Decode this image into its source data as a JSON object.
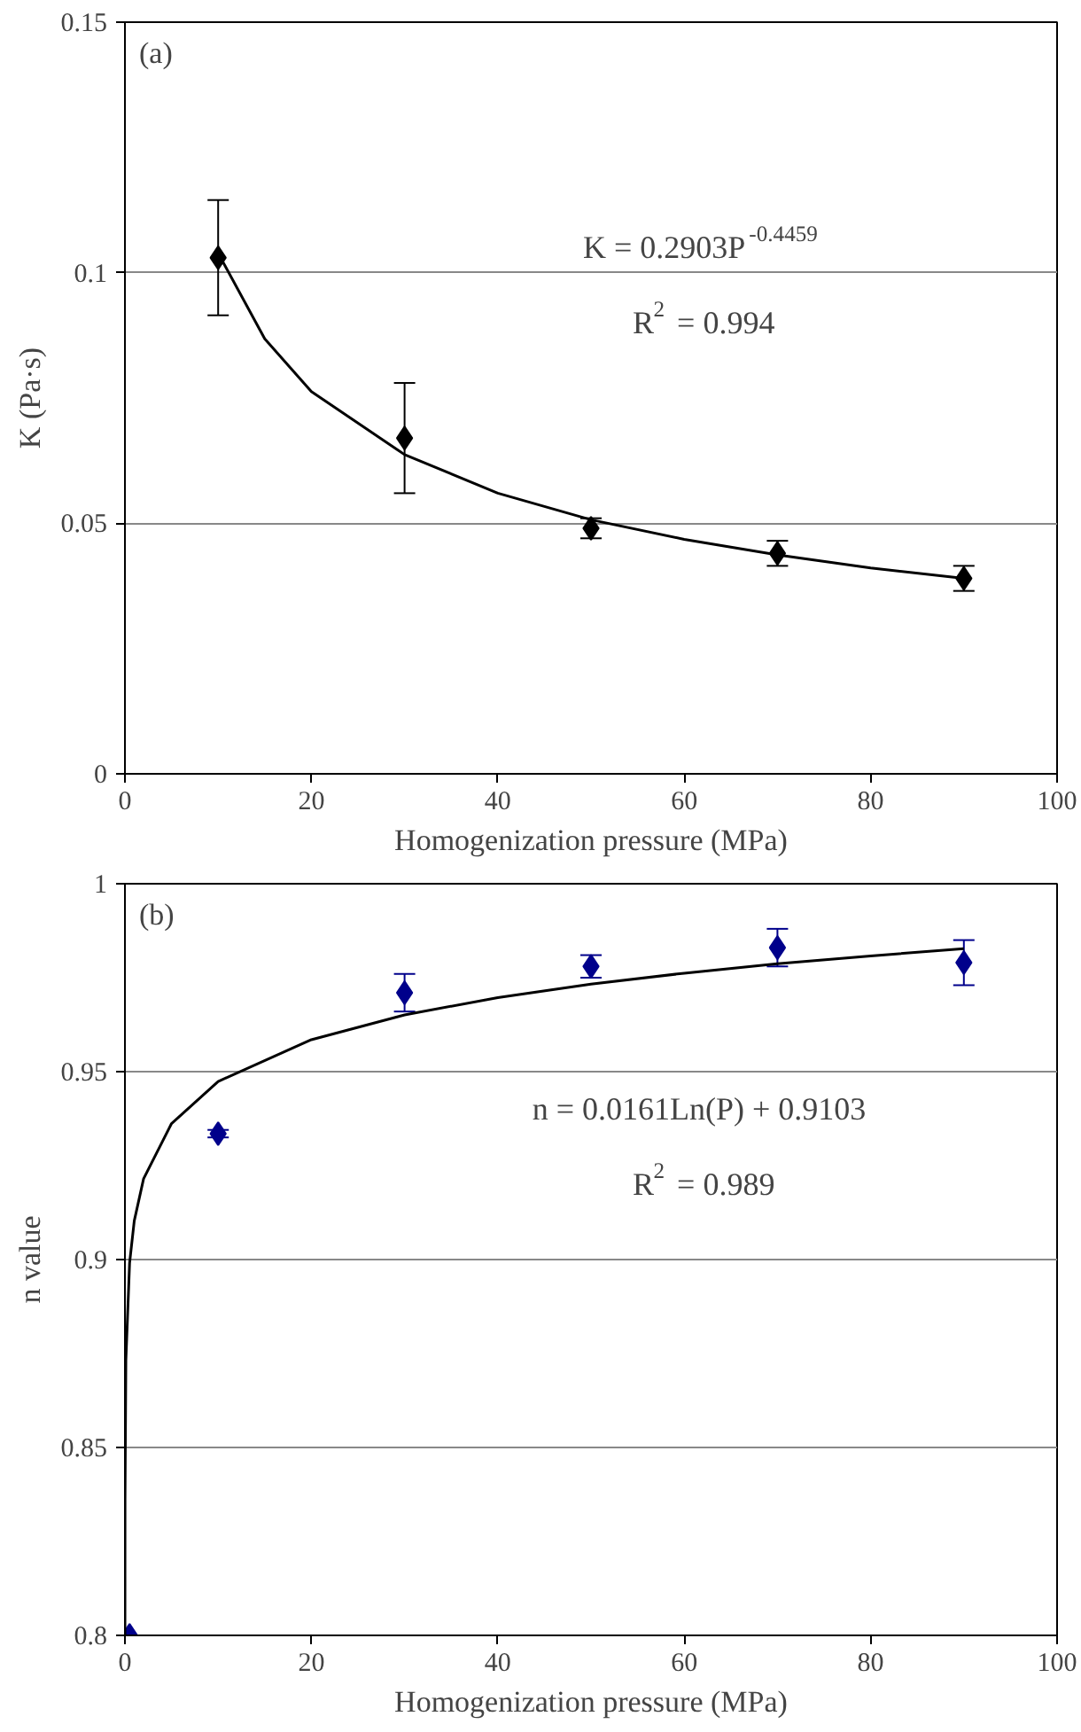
{
  "chart_data": [
    {
      "type": "scatter",
      "xlabel": "Homogenization pressure (MPa)",
      "ylabel": "K (Pa·s)",
      "xlim": [
        0,
        100
      ],
      "ylim": [
        0,
        0.15
      ],
      "xticks": [
        0,
        20,
        40,
        60,
        80,
        100
      ],
      "yticks": [
        0,
        0.05,
        0.1,
        0.15
      ],
      "grid": "y",
      "annotations": [
        "(a)",
        "K = 0.2903P$^{-0.4459}$",
        "R$^{2}$ = 0.994"
      ],
      "series": [
        {
          "color": "#000000",
          "marker": "diamond",
          "x": [
            10,
            30,
            50,
            70,
            90
          ],
          "values": [
            0.103,
            0.067,
            0.049,
            0.044,
            0.039
          ],
          "errors": [
            0.0115,
            0.011,
            0.002,
            0.0025,
            0.0025
          ]
        },
        {
          "type": "line",
          "color": "#000000",
          "line_style": "solid",
          "x": [
            10,
            15,
            20,
            30,
            40,
            50,
            60,
            70,
            80,
            90
          ],
          "values": [
            0.1039,
            0.0868,
            0.0763,
            0.0637,
            0.056,
            0.0507,
            0.0468,
            0.0437,
            0.0411,
            0.039
          ]
        }
      ]
    },
    {
      "type": "scatter",
      "xlabel": "Homogenization pressure (MPa)",
      "ylabel": "n value",
      "xlim": [
        0,
        100
      ],
      "ylim": [
        0.8,
        1
      ],
      "xticks": [
        0,
        20,
        40,
        60,
        80,
        100
      ],
      "yticks": [
        0.8,
        0.85,
        0.9,
        0.95,
        1
      ],
      "grid": "y",
      "annotations": [
        "(b)",
        "n = 0.0161Ln(P) + 0.9103",
        "R$^{2}$ = 0.989"
      ],
      "series": [
        {
          "color": "#00008b",
          "marker": "diamond",
          "x": [
            0.5,
            10,
            30,
            50,
            70,
            90
          ],
          "values": [
            0.8,
            0.9335,
            0.971,
            0.978,
            0.983,
            0.979
          ],
          "errors": [
            null,
            0.001,
            0.005,
            0.003,
            0.005,
            0.006
          ]
        },
        {
          "type": "line",
          "color": "#000000",
          "line_style": "solid",
          "x": [
            0.001,
            0.01,
            0.1,
            0.5,
            1,
            2,
            5,
            10,
            20,
            30,
            40,
            50,
            60,
            70,
            80,
            90
          ],
          "values": [
            0.8,
            0.8362,
            0.8732,
            0.8991,
            0.9103,
            0.9215,
            0.9362,
            0.9474,
            0.9585,
            0.9651,
            0.9697,
            0.9733,
            0.9762,
            0.9787,
            0.9808,
            0.9827
          ]
        }
      ]
    }
  ]
}
